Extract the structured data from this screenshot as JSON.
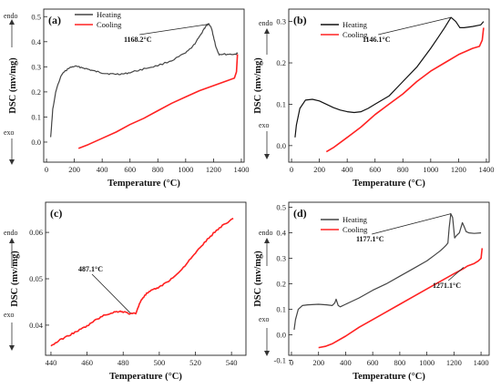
{
  "side_labels": {
    "endo": "endo",
    "exo": "exo"
  },
  "chart_data": [
    {
      "panel": "(a)",
      "type": "line",
      "xlabel": "Temperature (°C)",
      "ylabel": "DSC (mv/mg)",
      "xlim": [
        -20,
        1420
      ],
      "ylim": [
        -0.08,
        0.53
      ],
      "xticks": [
        0,
        200,
        400,
        600,
        800,
        1000,
        1200,
        1400
      ],
      "yticks": [
        0.0,
        0.1,
        0.2,
        0.3,
        0.4,
        0.5
      ],
      "ytick_labels": [
        "0.0",
        "0.1",
        "0.2",
        "0.3",
        "0.4",
        "0.5"
      ],
      "legend": "top-left",
      "series": [
        {
          "name": "Heating",
          "color": "#444444",
          "noisy": true,
          "x": [
            30,
            45,
            70,
            110,
            160,
            200,
            250,
            300,
            350,
            400,
            450,
            500,
            560,
            620,
            700,
            800,
            900,
            1000,
            1050,
            1100,
            1130,
            1150,
            1168,
            1185,
            1200,
            1220,
            1240,
            1300,
            1360,
            1375
          ],
          "y": [
            0.02,
            0.13,
            0.21,
            0.27,
            0.295,
            0.302,
            0.298,
            0.29,
            0.282,
            0.276,
            0.272,
            0.271,
            0.272,
            0.28,
            0.292,
            0.305,
            0.325,
            0.355,
            0.38,
            0.42,
            0.45,
            0.465,
            0.47,
            0.455,
            0.42,
            0.375,
            0.35,
            0.35,
            0.35,
            0.355
          ]
        },
        {
          "name": "Cooling",
          "color": "#ff2222",
          "x": [
            230,
            300,
            400,
            500,
            600,
            700,
            800,
            900,
            1000,
            1100,
            1200,
            1300,
            1350,
            1365,
            1372
          ],
          "y": [
            -0.025,
            -0.01,
            0.015,
            0.04,
            0.07,
            0.095,
            0.125,
            0.155,
            0.18,
            0.205,
            0.225,
            0.245,
            0.255,
            0.28,
            0.35
          ]
        }
      ],
      "annotations": [
        {
          "text": "1168.2°C",
          "x": 1168,
          "y": 0.47
        }
      ]
    },
    {
      "panel": "(b)",
      "type": "line",
      "xlabel": "Temperature (°C)",
      "ylabel": "DSC (mv/mg)",
      "xlim": [
        -20,
        1420
      ],
      "ylim": [
        -0.04,
        0.33
      ],
      "xticks": [
        0,
        200,
        400,
        600,
        800,
        1000,
        1200,
        1400
      ],
      "yticks": [
        0.0,
        0.1,
        0.2,
        0.3
      ],
      "ytick_labels": [
        "0.0",
        "0.1",
        "0.2",
        "0.3"
      ],
      "legend": "top-left",
      "series": [
        {
          "name": "Heating",
          "color": "#111111",
          "x": [
            25,
            35,
            60,
            100,
            150,
            200,
            250,
            300,
            350,
            400,
            450,
            500,
            550,
            600,
            700,
            800,
            900,
            1000,
            1050,
            1100,
            1146,
            1180,
            1210,
            1240,
            1300,
            1360,
            1380
          ],
          "y": [
            0.02,
            0.05,
            0.09,
            0.11,
            0.112,
            0.108,
            0.1,
            0.092,
            0.086,
            0.082,
            0.08,
            0.082,
            0.09,
            0.1,
            0.12,
            0.155,
            0.19,
            0.235,
            0.26,
            0.285,
            0.31,
            0.3,
            0.285,
            0.285,
            0.288,
            0.292,
            0.3
          ]
        },
        {
          "name": "Cooling",
          "color": "#ff2222",
          "x": [
            250,
            300,
            400,
            500,
            600,
            700,
            800,
            900,
            1000,
            1100,
            1200,
            1300,
            1350,
            1370,
            1380
          ],
          "y": [
            -0.015,
            -0.005,
            0.02,
            0.045,
            0.075,
            0.1,
            0.125,
            0.155,
            0.18,
            0.2,
            0.22,
            0.235,
            0.24,
            0.255,
            0.285
          ]
        }
      ],
      "annotations": [
        {
          "text": "1146.1°C",
          "x": 1146,
          "y": 0.31
        }
      ]
    },
    {
      "panel": "(c)",
      "type": "line",
      "xlabel": "Temperature (°C)",
      "ylabel": "DSC (mv/mg)",
      "xlim": [
        437,
        548
      ],
      "ylim": [
        0.0335,
        0.0665
      ],
      "xticks": [
        440,
        460,
        480,
        500,
        520,
        540
      ],
      "yticks": [
        0.04,
        0.05,
        0.06
      ],
      "ytick_labels": [
        "0.04",
        "0.05",
        "0.06"
      ],
      "series": [
        {
          "color": "#ff2222",
          "noisy": true,
          "x": [
            440,
            445,
            450,
            455,
            460,
            465,
            470,
            475,
            478,
            481,
            484,
            487,
            490,
            493,
            496,
            500,
            505,
            510,
            515,
            520,
            525,
            530,
            535,
            541
          ],
          "y": [
            0.0355,
            0.0368,
            0.0378,
            0.0388,
            0.0398,
            0.0412,
            0.0422,
            0.0428,
            0.043,
            0.0428,
            0.0424,
            0.0426,
            0.0455,
            0.0468,
            0.0475,
            0.0482,
            0.0495,
            0.051,
            0.0532,
            0.0555,
            0.0578,
            0.0598,
            0.0615,
            0.063
          ]
        }
      ],
      "annotations": [
        {
          "text": "487.1°C",
          "x": 484,
          "y": 0.0426
        }
      ]
    },
    {
      "panel": "(d)",
      "type": "line",
      "xlabel": "Temperature (°C)",
      "ylabel": "DSC (mv/mg)",
      "xlim": [
        -20,
        1460
      ],
      "ylim": [
        -0.08,
        0.52
      ],
      "xticks": [
        0,
        200,
        400,
        600,
        800,
        1000,
        1200,
        1400
      ],
      "yticks": [
        -0.1,
        0.0,
        0.1,
        0.2,
        0.3,
        0.4,
        0.5
      ],
      "ytick_labels": [
        "-0.1",
        "0.0",
        "0.1",
        "0.2",
        "0.3",
        "0.4",
        "0.5"
      ],
      "legend": "top-left",
      "series": [
        {
          "name": "Heating",
          "color": "#444444",
          "x": [
            20,
            30,
            50,
            80,
            120,
            200,
            260,
            300,
            320,
            330,
            345,
            360,
            400,
            500,
            600,
            700,
            800,
            900,
            1000,
            1050,
            1100,
            1120,
            1140,
            1155,
            1165,
            1177,
            1190,
            1205,
            1220,
            1240,
            1262,
            1275,
            1290,
            1310,
            1350,
            1400
          ],
          "y": [
            0.02,
            0.06,
            0.1,
            0.115,
            0.118,
            0.12,
            0.118,
            0.115,
            0.125,
            0.14,
            0.115,
            0.11,
            0.12,
            0.145,
            0.175,
            0.2,
            0.23,
            0.26,
            0.29,
            0.31,
            0.33,
            0.34,
            0.35,
            0.36,
            0.42,
            0.475,
            0.46,
            0.38,
            0.39,
            0.4,
            0.44,
            0.425,
            0.405,
            0.4,
            0.398,
            0.4
          ]
        },
        {
          "name": "Cooling",
          "color": "#ff2222",
          "x": [
            200,
            250,
            300,
            400,
            500,
            600,
            700,
            800,
            900,
            1000,
            1100,
            1200,
            1271,
            1300,
            1350,
            1380,
            1400,
            1408
          ],
          "y": [
            -0.05,
            -0.045,
            -0.035,
            -0.005,
            0.03,
            0.06,
            0.09,
            0.12,
            0.15,
            0.18,
            0.21,
            0.24,
            0.26,
            0.27,
            0.28,
            0.29,
            0.3,
            0.34
          ]
        }
      ],
      "annotations": [
        {
          "text": "1177.1°C",
          "x": 1177,
          "y": 0.475
        },
        {
          "text": "1271.1°C",
          "x": 1271,
          "y": 0.265
        }
      ]
    }
  ]
}
